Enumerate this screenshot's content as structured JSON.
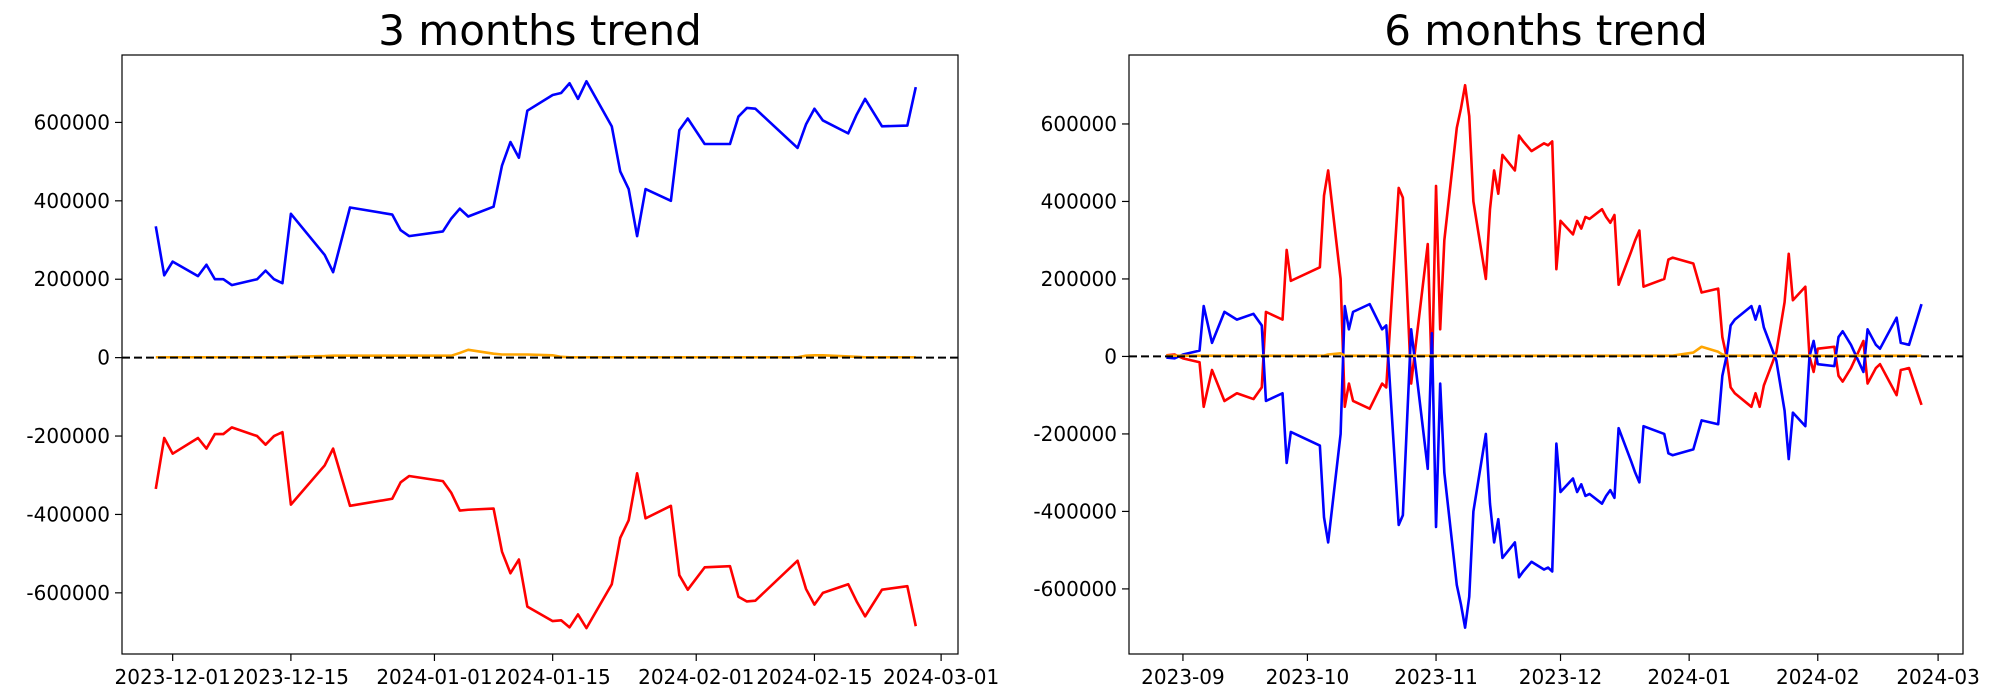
{
  "chart_data": [
    {
      "type": "line",
      "title": "3 months trend",
      "x": [
        "2023-11-29",
        "2023-11-30",
        "2023-12-01",
        "2023-12-04",
        "2023-12-05",
        "2023-12-06",
        "2023-12-07",
        "2023-12-08",
        "2023-12-11",
        "2023-12-12",
        "2023-12-13",
        "2023-12-14",
        "2023-12-15",
        "2023-12-19",
        "2023-12-20",
        "2023-12-22",
        "2023-12-27",
        "2023-12-28",
        "2023-12-29",
        "2024-01-02",
        "2024-01-03",
        "2024-01-04",
        "2024-01-05",
        "2024-01-08",
        "2024-01-09",
        "2024-01-10",
        "2024-01-11",
        "2024-01-12",
        "2024-01-15",
        "2024-01-16",
        "2024-01-17",
        "2024-01-18",
        "2024-01-19",
        "2024-01-22",
        "2024-01-23",
        "2024-01-24",
        "2024-01-25",
        "2024-01-26",
        "2024-01-29",
        "2024-01-30",
        "2024-01-31",
        "2024-02-02",
        "2024-02-05",
        "2024-02-06",
        "2024-02-07",
        "2024-02-08",
        "2024-02-13",
        "2024-02-14",
        "2024-02-15",
        "2024-02-16",
        "2024-02-19",
        "2024-02-20",
        "2024-02-21",
        "2024-02-23",
        "2024-02-26",
        "2024-02-27"
      ],
      "series": [
        {
          "color": "#0000ff",
          "values": [
            335000,
            210000,
            245000,
            208000,
            237000,
            200000,
            200000,
            185000,
            200000,
            222000,
            200000,
            190000,
            367000,
            262000,
            218000,
            383000,
            365000,
            325000,
            310000,
            322000,
            355000,
            380000,
            360000,
            385000,
            490000,
            550000,
            510000,
            630000,
            670000,
            675000,
            700000,
            660000,
            705000,
            590000,
            475000,
            430000,
            310000,
            430000,
            400000,
            580000,
            610000,
            545000,
            545000,
            615000,
            637000,
            635000,
            535000,
            595000,
            635000,
            605000,
            572000,
            620000,
            660000,
            590000,
            592000,
            690000
          ]
        },
        {
          "color": "#ff0000",
          "values": [
            -335000,
            -205000,
            -245000,
            -205000,
            -232000,
            -195000,
            -195000,
            -178000,
            -200000,
            -222000,
            -200000,
            -190000,
            -375000,
            -275000,
            -232000,
            -378000,
            -360000,
            -318000,
            -302000,
            -315000,
            -345000,
            -390000,
            -388000,
            -385000,
            -495000,
            -550000,
            -515000,
            -635000,
            -672000,
            -670000,
            -688000,
            -655000,
            -690000,
            -578000,
            -460000,
            -415000,
            -295000,
            -410000,
            -378000,
            -555000,
            -592000,
            -535000,
            -532000,
            -610000,
            -622000,
            -620000,
            -518000,
            -590000,
            -630000,
            -600000,
            -578000,
            -622000,
            -660000,
            -592000,
            -583000,
            -685000
          ]
        },
        {
          "color": "#ffa500",
          "values": [
            1000,
            1000,
            1000,
            1000,
            1000,
            1000,
            1000,
            1000,
            1000,
            1000,
            1000,
            1000,
            2000,
            4000,
            5000,
            5000,
            5000,
            5000,
            5000,
            5000,
            5000,
            12000,
            20000,
            10000,
            8000,
            8000,
            8000,
            8000,
            6000,
            2000,
            1000,
            1000,
            1000,
            1000,
            1000,
            1000,
            1000,
            1000,
            1000,
            1000,
            1000,
            1000,
            1000,
            1000,
            1000,
            1000,
            1000,
            5000,
            6000,
            6000,
            3000,
            2000,
            1000,
            1000,
            1000,
            1000
          ]
        }
      ],
      "xlim": [
        "2023-11-25",
        "2024-03-03"
      ],
      "xticks": [
        "2023-12-01",
        "2023-12-15",
        "2024-01-01",
        "2024-01-15",
        "2024-02-01",
        "2024-02-15",
        "2024-03-01"
      ],
      "ylim": [
        -756000,
        772000
      ],
      "yticks": [
        -600000,
        -400000,
        -200000,
        0,
        200000,
        400000,
        600000
      ],
      "axhline": {
        "y": 0,
        "color": "#000000",
        "style": "dashed"
      }
    },
    {
      "type": "line",
      "title": "6 months trend",
      "x": [
        "2023-08-28",
        "2023-08-30",
        "2023-09-01",
        "2023-09-05",
        "2023-09-06",
        "2023-09-08",
        "2023-09-11",
        "2023-09-14",
        "2023-09-18",
        "2023-09-20",
        "2023-09-21",
        "2023-09-25",
        "2023-09-26",
        "2023-09-27",
        "2023-10-04",
        "2023-10-05",
        "2023-10-06",
        "2023-10-09",
        "2023-10-10",
        "2023-10-11",
        "2023-10-12",
        "2023-10-16",
        "2023-10-19",
        "2023-10-20",
        "2023-10-23",
        "2023-10-24",
        "2023-10-26",
        "2023-10-30",
        "2023-10-31",
        "2023-11-01",
        "2023-11-02",
        "2023-11-03",
        "2023-11-06",
        "2023-11-07",
        "2023-11-08",
        "2023-11-09",
        "2023-11-10",
        "2023-11-13",
        "2023-11-14",
        "2023-11-15",
        "2023-11-16",
        "2023-11-17",
        "2023-11-20",
        "2023-11-21",
        "2023-11-22",
        "2023-11-24",
        "2023-11-27",
        "2023-11-28",
        "2023-11-29",
        "2023-11-30",
        "2023-12-01",
        "2023-12-04",
        "2023-12-05",
        "2023-12-06",
        "2023-12-07",
        "2023-12-08",
        "2023-12-11",
        "2023-12-12",
        "2023-12-13",
        "2023-12-14",
        "2023-12-15",
        "2023-12-18",
        "2023-12-19",
        "2023-12-20",
        "2023-12-21",
        "2023-12-26",
        "2023-12-27",
        "2023-12-28",
        "2024-01-02",
        "2024-01-04",
        "2024-01-08",
        "2024-01-09",
        "2024-01-10",
        "2024-01-11",
        "2024-01-12",
        "2024-01-16",
        "2024-01-17",
        "2024-01-18",
        "2024-01-19",
        "2024-01-22",
        "2024-01-24",
        "2024-01-25",
        "2024-01-26",
        "2024-01-29",
        "2024-01-30",
        "2024-01-31",
        "2024-02-01",
        "2024-02-05",
        "2024-02-06",
        "2024-02-07",
        "2024-02-09",
        "2024-02-12",
        "2024-02-13",
        "2024-02-15",
        "2024-02-16",
        "2024-02-20",
        "2024-02-21",
        "2024-02-23",
        "2024-02-26"
      ],
      "series": [
        {
          "color": "#ff0000",
          "values": [
            3000,
            5000,
            -5000,
            -15000,
            -130000,
            -35000,
            -115000,
            -95000,
            -110000,
            -80000,
            115000,
            95000,
            275000,
            195000,
            230000,
            415000,
            480000,
            200000,
            -130000,
            -70000,
            -115000,
            -135000,
            -70000,
            -80000,
            435000,
            410000,
            -70000,
            290000,
            -60000,
            440000,
            70000,
            300000,
            590000,
            640000,
            700000,
            620000,
            400000,
            200000,
            380000,
            480000,
            420000,
            520000,
            480000,
            570000,
            555000,
            530000,
            550000,
            545000,
            555000,
            225000,
            350000,
            315000,
            350000,
            330000,
            360000,
            355000,
            380000,
            360000,
            345000,
            365000,
            185000,
            270000,
            300000,
            325000,
            180000,
            200000,
            250000,
            255000,
            240000,
            165000,
            175000,
            50000,
            0,
            -80000,
            -95000,
            -130000,
            -95000,
            -130000,
            -75000,
            10000,
            140000,
            265000,
            145000,
            180000,
            0,
            -40000,
            20000,
            25000,
            -50000,
            -65000,
            -30000,
            40000,
            -70000,
            -30000,
            -20000,
            -100000,
            -35000,
            -30000,
            -125000
          ]
        },
        {
          "color": "#0000ff",
          "values": [
            -3000,
            -5000,
            5000,
            15000,
            130000,
            35000,
            115000,
            95000,
            110000,
            80000,
            -115000,
            -95000,
            -275000,
            -195000,
            -230000,
            -415000,
            -480000,
            -200000,
            130000,
            70000,
            115000,
            135000,
            70000,
            80000,
            -435000,
            -410000,
            70000,
            -290000,
            60000,
            -440000,
            -70000,
            -300000,
            -590000,
            -640000,
            -700000,
            -620000,
            -400000,
            -200000,
            -380000,
            -480000,
            -420000,
            -520000,
            -480000,
            -570000,
            -555000,
            -530000,
            -550000,
            -545000,
            -555000,
            -225000,
            -350000,
            -315000,
            -350000,
            -330000,
            -360000,
            -355000,
            -380000,
            -360000,
            -345000,
            -365000,
            -185000,
            -270000,
            -300000,
            -325000,
            -180000,
            -200000,
            -250000,
            -255000,
            -240000,
            -165000,
            -175000,
            -50000,
            0,
            80000,
            95000,
            130000,
            95000,
            130000,
            75000,
            -10000,
            -140000,
            -265000,
            -145000,
            -180000,
            0,
            40000,
            -20000,
            -25000,
            50000,
            65000,
            30000,
            -40000,
            70000,
            30000,
            20000,
            100000,
            35000,
            30000,
            135000
          ]
        },
        {
          "color": "#ffa500",
          "values": [
            2000,
            2000,
            2000,
            2000,
            2000,
            2000,
            2000,
            2000,
            2000,
            2000,
            2000,
            2000,
            2000,
            2000,
            2000,
            2000,
            5000,
            8000,
            2000,
            2000,
            2000,
            2000,
            2000,
            2000,
            2000,
            2000,
            2000,
            2000,
            2000,
            2000,
            2000,
            2000,
            2000,
            2000,
            2000,
            2000,
            2000,
            2000,
            2000,
            2000,
            2000,
            2000,
            2000,
            2000,
            2000,
            2000,
            2000,
            2000,
            2000,
            2000,
            2000,
            2000,
            2000,
            2000,
            2000,
            2000,
            2000,
            2000,
            2000,
            2000,
            2000,
            2000,
            2000,
            2000,
            2000,
            2000,
            2000,
            2000,
            10000,
            25000,
            12000,
            5000,
            2000,
            2000,
            2000,
            2000,
            2000,
            2000,
            2000,
            2000,
            2000,
            2000,
            2000,
            2000,
            2000,
            2000,
            2000,
            2000,
            2000,
            2000,
            2000,
            2000,
            2000,
            2000,
            2000,
            2000,
            2000,
            2000,
            2000
          ]
        }
      ],
      "xlim": [
        "2023-08-19",
        "2024-03-07"
      ],
      "xticks": [
        {
          "value": "2023-09-01",
          "label": "2023-09"
        },
        {
          "value": "2023-10-01",
          "label": "2023-10"
        },
        {
          "value": "2023-11-01",
          "label": "2023-11"
        },
        {
          "value": "2023-12-01",
          "label": "2023-12"
        },
        {
          "value": "2024-01-01",
          "label": "2024-01"
        },
        {
          "value": "2024-02-01",
          "label": "2024-02"
        },
        {
          "value": "2024-03-01",
          "label": "2024-03"
        }
      ],
      "ylim": [
        -768000,
        778000
      ],
      "yticks": [
        -600000,
        -400000,
        -200000,
        0,
        200000,
        400000,
        600000
      ],
      "axhline": {
        "y": 0,
        "color": "#000000",
        "style": "dashed"
      }
    }
  ]
}
